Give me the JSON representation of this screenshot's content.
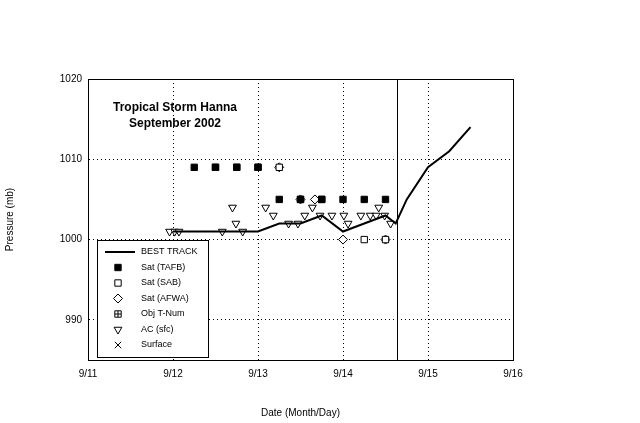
{
  "chart_data": {
    "type": "scatter",
    "title": "Tropical Storm Hanna",
    "subtitle": "September 2002",
    "x_label": "Date (Month/Day)",
    "y_label": "Pressure (mb)",
    "xlim": [
      11,
      16
    ],
    "xticks": [
      {
        "value": 11,
        "label": "9/11"
      },
      {
        "value": 12,
        "label": "9/12"
      },
      {
        "value": 13,
        "label": "9/13"
      },
      {
        "value": 14,
        "label": "9/14"
      },
      {
        "value": 15,
        "label": "9/15"
      },
      {
        "value": 16,
        "label": "9/16"
      }
    ],
    "ylim": [
      985,
      1020
    ],
    "yticks": [
      990,
      1000,
      1010,
      1020
    ],
    "grid": true,
    "legend": "lower left",
    "vertical_lines": [
      14.63
    ],
    "series": [
      {
        "name": "BEST TRACK",
        "type": "line",
        "color": "#000000",
        "marker": "none",
        "line_style": "solid",
        "x": [
          12,
          12.25,
          12.5,
          12.75,
          13,
          13.25,
          13.5,
          13.75,
          14,
          14.25,
          14.5,
          14.62,
          14.75,
          15,
          15.25,
          15.5
        ],
        "values": [
          1001,
          1001,
          1001,
          1001,
          1001,
          1002,
          1002,
          1003,
          1001,
          1002,
          1003,
          1002,
          1005,
          1009,
          1011,
          1014
        ]
      },
      {
        "name": "Sat (TAFB)",
        "type": "scatter",
        "color": "#000000",
        "marker": "square_filled",
        "x": [
          12.25,
          12.5,
          12.75,
          13,
          13.25,
          13.5,
          13.75,
          14,
          14.25,
          14.5
        ],
        "values": [
          1009,
          1009,
          1009,
          1009,
          1005,
          1005,
          1005,
          1005,
          1005,
          1005
        ]
      },
      {
        "name": "Sat (SAB)",
        "type": "scatter",
        "color": "#000000",
        "marker": "square",
        "x": [
          12.5,
          12.75,
          13,
          13.25,
          13.5,
          13.75,
          14.25,
          14.5
        ],
        "values": [
          1009,
          1009,
          1009,
          1009,
          1005,
          1005,
          1000,
          1000
        ]
      },
      {
        "name": "Sat (AFWA)",
        "type": "scatter",
        "color": "#000000",
        "marker": "diamond",
        "x": [
          13.25,
          13.5,
          13.67,
          14,
          14.5
        ],
        "values": [
          1009,
          1005,
          1005,
          1000,
          1000
        ]
      },
      {
        "name": "Obj T-Num",
        "type": "scatter",
        "color": "#000000",
        "marker": "square_cross",
        "x": [],
        "values": []
      },
      {
        "name": "AC (sfc)",
        "type": "scatter",
        "color": "#000000",
        "marker": "triangle_down",
        "x": [
          11.96,
          12.02,
          12.07,
          12.58,
          12.7,
          12.74,
          12.82,
          13.09,
          13.18,
          13.36,
          13.47,
          13.55,
          13.64,
          13.73,
          13.87,
          14.01,
          14.06,
          14.21,
          14.32,
          14.39,
          14.42,
          14.49,
          14.56
        ],
        "values": [
          1001,
          1001,
          1001,
          1001,
          1004,
          1002,
          1001,
          1004,
          1003,
          1002,
          1002,
          1003,
          1004,
          1003,
          1003,
          1003,
          1002,
          1003,
          1003,
          1003,
          1004,
          1003,
          1002
        ]
      },
      {
        "name": "Surface",
        "type": "scatter",
        "color": "#000000",
        "marker": "x",
        "x": [],
        "values": []
      }
    ]
  }
}
